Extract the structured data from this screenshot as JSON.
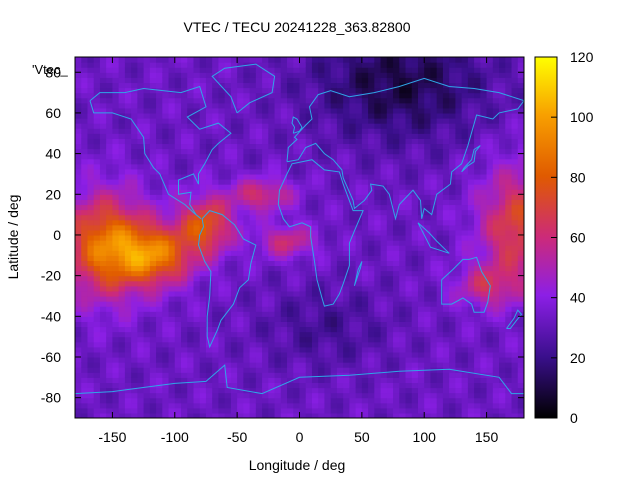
{
  "chart_data": {
    "type": "heatmap",
    "title": "VTEC / TECU 20241228_363.82800",
    "xlabel": "Longitude / deg",
    "ylabel": "Latitude / deg",
    "key_label": "'Vtec_",
    "xlim": [
      -180,
      180
    ],
    "ylim": [
      -90,
      87.5
    ],
    "x_ticks": [
      -150,
      -100,
      -50,
      0,
      50,
      100,
      150
    ],
    "y_ticks": [
      -80,
      -60,
      -40,
      -20,
      0,
      20,
      40,
      60,
      80
    ],
    "colorbar": {
      "min": 0,
      "max": 120,
      "ticks": [
        0,
        20,
        40,
        60,
        80,
        100,
        120
      ]
    },
    "colormap": [
      "#000000",
      "#3a0f8c",
      "#8c1fe6",
      "#cc2a7a",
      "#e05a00",
      "#f8a000",
      "#ffff00"
    ],
    "coastline_color": "#2fa6e8",
    "grid": false
  }
}
